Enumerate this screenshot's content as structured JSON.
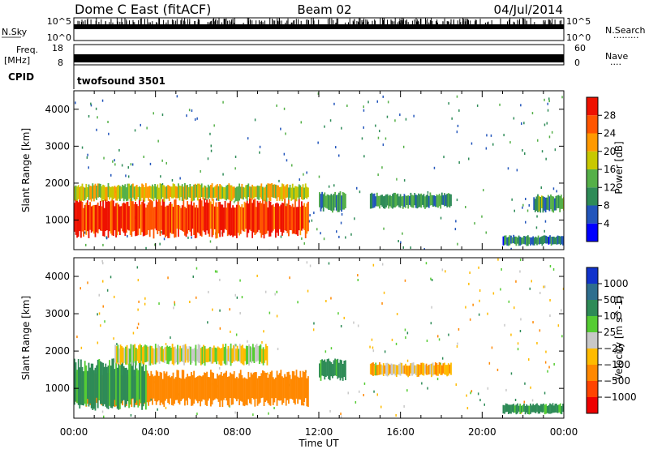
{
  "header": {
    "station": "Dome C East (fitACF)",
    "beam": "Beam 02",
    "date": "04/Jul/2014"
  },
  "strip_panels": {
    "nsky": {
      "label": "N.Sky",
      "ticks": [
        "10^5",
        "10^0"
      ]
    },
    "nsearch": {
      "label": "N.Search",
      "ticks": [
        "10^5",
        "10^0"
      ]
    },
    "freq": {
      "label_line1": "Freq.",
      "label_line2": "[MHz]",
      "ticks": [
        "18",
        "8"
      ]
    },
    "nave": {
      "label": "Nave",
      "ticks": [
        "60",
        "0"
      ]
    },
    "cpid": {
      "label": "CPID",
      "value": "twofsound 3501"
    }
  },
  "chart_data": [
    {
      "type": "heatmap",
      "panel": "power",
      "ylabel": "Slant Range [km]",
      "xlabel": "",
      "ylim": [
        200,
        4500
      ],
      "yticks": [
        "1000",
        "2000",
        "3000",
        "4000"
      ],
      "xlim": [
        "00:00",
        "24:00"
      ],
      "colorbar": {
        "label": "Power [dB]",
        "ticks": [
          "4",
          "8",
          "12",
          "16",
          "20",
          "24",
          "28"
        ],
        "colors": [
          "#0000ff",
          "#2255bb",
          "#2e8b57",
          "#55b048",
          "#c8c800",
          "#ff9900",
          "#ff5500",
          "#ee1100"
        ]
      },
      "regions": [
        {
          "start_hr": 0.0,
          "end_hr": 11.5,
          "range_min_km": 500,
          "range_max_km": 1600,
          "value": 28
        },
        {
          "start_hr": 0.0,
          "end_hr": 11.5,
          "range_min_km": 1500,
          "range_max_km": 2000,
          "value": 18
        },
        {
          "start_hr": 12.0,
          "end_hr": 13.3,
          "range_min_km": 1200,
          "range_max_km": 1800,
          "value": 10
        },
        {
          "start_hr": 14.5,
          "end_hr": 18.5,
          "range_min_km": 1300,
          "range_max_km": 1750,
          "value": 10
        },
        {
          "start_hr": 21.0,
          "end_hr": 24.0,
          "range_min_km": 300,
          "range_max_km": 600,
          "value": 8
        },
        {
          "start_hr": 22.5,
          "end_hr": 24.0,
          "range_min_km": 1200,
          "range_max_km": 1700,
          "value": 12
        }
      ]
    },
    {
      "type": "heatmap",
      "panel": "velocity",
      "ylabel": "Slant Range [km]",
      "xlabel": "Time UT",
      "ylim": [
        200,
        4500
      ],
      "yticks": [
        "1000",
        "2000",
        "3000",
        "4000"
      ],
      "xticks": [
        "00:00",
        "04:00",
        "08:00",
        "12:00",
        "16:00",
        "20:00",
        "00:00"
      ],
      "colorbar": {
        "label": "Velocity [m s^-1]",
        "ticks": [
          "1000",
          "500",
          "100",
          "25",
          "−25",
          "−100",
          "−500",
          "−1000"
        ],
        "colors": [
          "#1133cc",
          "#2e6e8e",
          "#2e8b57",
          "#55cc33",
          "#c8c8c8",
          "#ffbb00",
          "#ff8800",
          "#ff4400",
          "#ee0000"
        ]
      },
      "regions": [
        {
          "start_hr": 0.0,
          "end_hr": 11.5,
          "range_min_km": 500,
          "range_max_km": 1500,
          "value": -300
        },
        {
          "start_hr": 0.0,
          "end_hr": 3.5,
          "range_min_km": 400,
          "range_max_km": 1800,
          "value": 150
        },
        {
          "start_hr": 2.0,
          "end_hr": 9.5,
          "range_min_km": 1600,
          "range_max_km": 2200,
          "value": 0
        },
        {
          "start_hr": 12.0,
          "end_hr": 13.3,
          "range_min_km": 1200,
          "range_max_km": 1800,
          "value": 150
        },
        {
          "start_hr": 14.5,
          "end_hr": 18.5,
          "range_min_km": 1300,
          "range_max_km": 1700,
          "value": -60
        },
        {
          "start_hr": 21.0,
          "end_hr": 24.0,
          "range_min_km": 300,
          "range_max_km": 600,
          "value": 150
        }
      ]
    }
  ]
}
